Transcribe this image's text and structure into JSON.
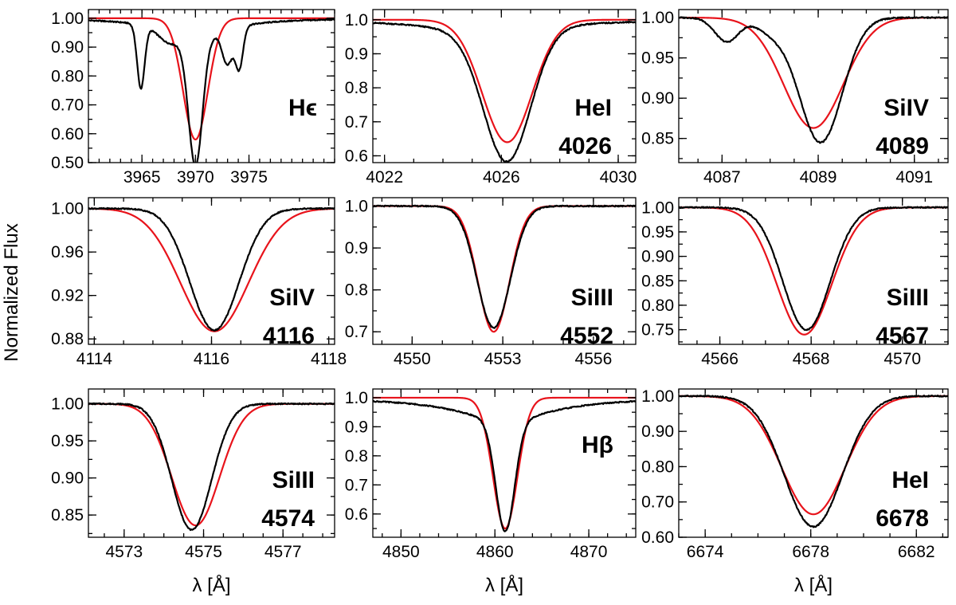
{
  "figure": {
    "ylabel": "Normalized Flux",
    "xlabel": "λ [Å]",
    "colors": {
      "observed": "#000000",
      "model": "#e8131b"
    }
  },
  "chart_data": [
    {
      "type": "line",
      "label_lines": [
        "Hϵ"
      ],
      "xlim": [
        3960,
        3983
      ],
      "ylim": [
        0.5,
        1.03
      ],
      "xticks": [
        3965,
        3970,
        3975
      ],
      "xminor": 1,
      "yticks": [
        0.5,
        0.6,
        0.7,
        0.8,
        0.9,
        1.0
      ],
      "yminor": 0.05,
      "ytick_labels": [
        "0.50",
        "0.60",
        "0.70",
        "0.80",
        "0.90",
        "1.00"
      ],
      "show_xlabel": false,
      "observed": {
        "lines": [
          [
            3970.0,
            0.44,
            0.65
          ],
          [
            3964.9,
            0.22,
            0.35
          ],
          [
            3973.0,
            0.12,
            0.5
          ],
          [
            3974.1,
            0.14,
            0.35
          ],
          [
            3967.5,
            0.04,
            1.0
          ]
        ],
        "wings": [
          [
            3970.0,
            0.07,
            3.5
          ]
        ]
      },
      "model": {
        "lines": [
          [
            3970.0,
            0.42,
            1.15
          ]
        ],
        "wings": []
      }
    },
    {
      "type": "line",
      "label_lines": [
        "HeI",
        "4026"
      ],
      "xlim": [
        4021.6,
        4030.6
      ],
      "ylim": [
        0.58,
        1.03
      ],
      "xticks": [
        4022,
        4026,
        4030
      ],
      "xminor": 1,
      "yticks": [
        0.6,
        0.7,
        0.8,
        0.9,
        1.0
      ],
      "yminor": 0.05,
      "ytick_labels": [
        "0.6",
        "0.7",
        "0.8",
        "0.9",
        "1.0"
      ],
      "show_xlabel": false,
      "observed": {
        "lines": [
          [
            4026.2,
            0.38,
            0.8
          ]
        ],
        "wings": [
          [
            4025.6,
            0.04,
            2.2
          ]
        ]
      },
      "model": {
        "lines": [
          [
            4026.2,
            0.36,
            0.85
          ]
        ],
        "wings": []
      }
    },
    {
      "type": "line",
      "label_lines": [
        "SiIV",
        "4089"
      ],
      "xlim": [
        4086.1,
        4091.7
      ],
      "ylim": [
        0.82,
        1.01
      ],
      "xticks": [
        4087,
        4089,
        4091
      ],
      "xminor": 0.5,
      "yticks": [
        0.85,
        0.9,
        0.95,
        1.0
      ],
      "yminor": 0.025,
      "ytick_labels": [
        "0.85",
        "0.90",
        "0.95",
        "1.00"
      ],
      "show_xlabel": false,
      "observed": {
        "lines": [
          [
            4089.05,
            0.155,
            0.45
          ],
          [
            4087.1,
            0.03,
            0.25
          ],
          [
            4088.0,
            0.015,
            0.3
          ]
        ],
        "wings": []
      },
      "model": {
        "lines": [
          [
            4088.9,
            0.137,
            0.62
          ]
        ],
        "wings": []
      }
    },
    {
      "type": "line",
      "label_lines": [
        "SiIV",
        "4116"
      ],
      "xlim": [
        4113.9,
        4118.1
      ],
      "ylim": [
        0.875,
        1.01
      ],
      "xticks": [
        4114,
        4116,
        4118
      ],
      "xminor": 0.5,
      "yticks": [
        0.88,
        0.92,
        0.96,
        1.0
      ],
      "yminor": 0.02,
      "ytick_labels": [
        "0.88",
        "0.92",
        "0.96",
        "1.00"
      ],
      "show_xlabel": false,
      "observed": {
        "lines": [
          [
            4116.05,
            0.112,
            0.42
          ]
        ],
        "wings": []
      },
      "model": {
        "lines": [
          [
            4116.05,
            0.113,
            0.58
          ]
        ],
        "wings": []
      }
    },
    {
      "type": "line",
      "label_lines": [
        "SiIII",
        "4552"
      ],
      "xlim": [
        4548.7,
        4557.4
      ],
      "ylim": [
        0.67,
        1.02
      ],
      "xticks": [
        4550,
        4553,
        4556
      ],
      "xminor": 1,
      "yticks": [
        0.7,
        0.8,
        0.9,
        1.0
      ],
      "yminor": 0.05,
      "ytick_labels": [
        "0.7",
        "0.8",
        "0.9",
        "1.0"
      ],
      "show_xlabel": false,
      "observed": {
        "lines": [
          [
            4552.7,
            0.29,
            0.55
          ]
        ],
        "wings": []
      },
      "model": {
        "lines": [
          [
            4552.7,
            0.3,
            0.52
          ]
        ],
        "wings": []
      }
    },
    {
      "type": "line",
      "label_lines": [
        "SiIII",
        "4567"
      ],
      "xlim": [
        4565.1,
        4571.0
      ],
      "ylim": [
        0.72,
        1.02
      ],
      "xticks": [
        4566,
        4568,
        4570
      ],
      "xminor": 0.5,
      "yticks": [
        0.75,
        0.8,
        0.85,
        0.9,
        0.95,
        1.0
      ],
      "yminor": 0.025,
      "ytick_labels": [
        "0.75",
        "0.80",
        "0.85",
        "0.90",
        "0.95",
        "1.00"
      ],
      "show_xlabel": false,
      "observed": {
        "lines": [
          [
            4567.9,
            0.25,
            0.52
          ]
        ],
        "wings": []
      },
      "model": {
        "lines": [
          [
            4567.85,
            0.26,
            0.6
          ]
        ],
        "wings": []
      }
    },
    {
      "type": "line",
      "label_lines": [
        "SiIII",
        "4574"
      ],
      "xlim": [
        4572.1,
        4578.3
      ],
      "ylim": [
        0.82,
        1.02
      ],
      "xticks": [
        4573,
        4575,
        4577
      ],
      "xminor": 0.5,
      "yticks": [
        0.85,
        0.9,
        0.95,
        1.0
      ],
      "yminor": 0.025,
      "ytick_labels": [
        "0.85",
        "0.90",
        "0.95",
        "1.00"
      ],
      "show_xlabel": true,
      "observed": {
        "lines": [
          [
            4574.7,
            0.17,
            0.5
          ]
        ],
        "wings": []
      },
      "model": {
        "lines": [
          [
            4574.8,
            0.164,
            0.6
          ]
        ],
        "wings": []
      }
    },
    {
      "type": "line",
      "label_lines": [
        "Hβ"
      ],
      "xlim": [
        4847,
        4875
      ],
      "ylim": [
        0.52,
        1.03
      ],
      "xticks": [
        4850,
        4860,
        4870
      ],
      "xminor": 2,
      "yticks": [
        0.6,
        0.7,
        0.8,
        0.9,
        1.0
      ],
      "yminor": 0.05,
      "ytick_labels": [
        "0.6",
        "0.7",
        "0.8",
        "0.9",
        "1.0"
      ],
      "show_xlabel": true,
      "observed": {
        "lines": [
          [
            4861.1,
            0.38,
            1.0
          ]
        ],
        "wings": [
          [
            4861.1,
            0.08,
            6.0
          ]
        ]
      },
      "model": {
        "lines": [
          [
            4861.1,
            0.45,
            1.3
          ]
        ],
        "wings": []
      }
    },
    {
      "type": "line",
      "label_lines": [
        "HeI",
        "6678"
      ],
      "xlim": [
        6673.0,
        6683.2
      ],
      "ylim": [
        0.6,
        1.02
      ],
      "xticks": [
        6674,
        6678,
        6682
      ],
      "xminor": 1,
      "yticks": [
        0.6,
        0.7,
        0.8,
        0.9,
        1.0
      ],
      "yminor": 0.05,
      "ytick_labels": [
        "0.60",
        "0.70",
        "0.80",
        "0.90",
        "1.00"
      ],
      "show_xlabel": true,
      "observed": {
        "lines": [
          [
            6678.1,
            0.37,
            1.1
          ]
        ],
        "wings": []
      },
      "model": {
        "lines": [
          [
            6678.1,
            0.335,
            1.2
          ]
        ],
        "wings": []
      }
    }
  ]
}
